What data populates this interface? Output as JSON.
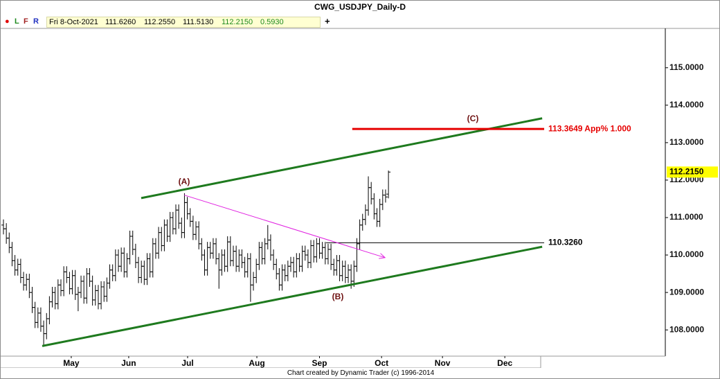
{
  "toolbar": {
    "buttons": [
      "L",
      "F",
      "R"
    ],
    "date": "Fri 8-Oct-2021",
    "open": "111.6260",
    "high": "112.2550",
    "low": "111.5130",
    "close": "112.2150",
    "change": "0.5930",
    "add": "+"
  },
  "chart_data": {
    "type": "ohlc",
    "title": "CWG_USDJPY_Daily-D",
    "color": "#000000",
    "open": [
      110.8,
      110.7,
      110.45,
      110.2,
      109.85,
      109.6,
      109.75,
      109.4,
      109.2,
      109.35,
      109.0,
      108.6,
      108.2,
      108.45,
      108.1,
      107.9,
      108.3,
      108.75,
      109.0,
      108.7,
      109.2,
      109.05,
      109.55,
      109.4,
      109.1,
      109.45,
      108.95,
      109.0,
      109.3,
      108.85,
      109.5,
      109.3,
      108.8,
      109.05,
      108.7,
      109.15,
      108.9,
      109.25,
      109.6,
      109.45,
      110.0,
      109.7,
      110.05,
      109.55,
      109.9,
      110.5,
      110.15,
      109.8,
      109.4,
      109.7,
      109.35,
      109.9,
      109.55,
      110.3,
      110.05,
      110.6,
      110.25,
      110.8,
      110.5,
      111.0,
      110.7,
      111.2,
      110.85,
      110.6,
      111.4,
      111.1,
      110.9,
      110.55,
      110.75,
      110.3,
      110.0,
      109.6,
      110.2,
      110.05,
      110.3,
      109.9,
      109.6,
      110.0,
      109.7,
      110.35,
      109.85,
      110.1,
      109.7,
      110.0,
      109.8,
      109.55,
      109.9,
      109.2,
      109.4,
      109.75,
      110.2,
      109.9,
      110.3,
      110.4,
      110.0,
      109.75,
      109.5,
      109.2,
      109.6,
      109.45,
      109.7,
      109.8,
      109.55,
      109.9,
      109.7,
      110.1,
      110.0,
      109.8,
      110.25,
      109.95,
      110.3,
      110.05,
      110.2,
      109.9,
      110.15,
      109.75,
      109.6,
      109.85,
      109.45,
      109.7,
      109.4,
      109.6,
      109.3,
      109.7,
      110.3,
      110.8,
      110.95,
      111.2,
      111.8,
      111.5,
      111.1,
      110.9,
      111.35,
      111.6,
      111.626
    ],
    "high": [
      110.95,
      110.85,
      110.6,
      110.35,
      110.0,
      109.9,
      109.9,
      109.55,
      109.5,
      109.5,
      109.15,
      108.75,
      108.6,
      108.6,
      108.25,
      108.45,
      108.9,
      109.15,
      109.15,
      109.35,
      109.35,
      109.7,
      109.7,
      109.55,
      109.6,
      109.6,
      109.15,
      109.45,
      109.45,
      109.65,
      109.65,
      109.45,
      109.2,
      109.2,
      109.3,
      109.3,
      109.4,
      109.75,
      109.75,
      110.15,
      110.15,
      110.2,
      110.2,
      110.05,
      110.65,
      110.65,
      110.3,
      109.95,
      109.85,
      109.85,
      110.05,
      110.05,
      110.45,
      110.45,
      110.75,
      110.75,
      110.95,
      110.95,
      111.15,
      111.15,
      111.35,
      111.35,
      111.0,
      111.65,
      111.55,
      111.25,
      111.05,
      110.9,
      110.9,
      110.45,
      110.15,
      110.35,
      110.35,
      110.45,
      110.45,
      110.05,
      110.15,
      110.15,
      110.5,
      110.5,
      110.25,
      110.25,
      110.15,
      110.15,
      109.95,
      110.05,
      110.05,
      109.55,
      109.9,
      110.35,
      110.35,
      110.45,
      110.8,
      110.55,
      110.15,
      109.9,
      109.65,
      109.75,
      109.75,
      109.85,
      109.95,
      109.95,
      110.05,
      110.05,
      110.25,
      110.25,
      110.15,
      110.4,
      110.4,
      110.45,
      110.45,
      110.35,
      110.35,
      110.3,
      110.3,
      109.9,
      110.0,
      110.0,
      109.85,
      109.85,
      109.75,
      109.75,
      109.85,
      110.45,
      110.95,
      111.1,
      111.35,
      112.1,
      111.95,
      111.65,
      111.25,
      111.5,
      111.75,
      111.75,
      112.255
    ],
    "low": [
      110.55,
      110.3,
      110.05,
      109.7,
      109.45,
      109.45,
      109.25,
      109.05,
      109.05,
      108.85,
      108.45,
      108.05,
      108.05,
      107.95,
      107.55,
      107.75,
      108.15,
      108.6,
      108.55,
      108.55,
      108.9,
      108.9,
      109.25,
      108.95,
      108.95,
      108.8,
      108.5,
      108.85,
      108.7,
      108.7,
      109.15,
      108.65,
      108.65,
      108.55,
      108.55,
      108.75,
      108.75,
      109.1,
      109.3,
      109.3,
      109.55,
      109.55,
      109.4,
      109.4,
      109.75,
      110.0,
      109.65,
      109.25,
      109.25,
      109.2,
      109.2,
      109.4,
      109.4,
      109.9,
      109.9,
      110.1,
      110.1,
      110.35,
      110.35,
      110.55,
      110.55,
      110.7,
      110.45,
      110.45,
      110.95,
      110.75,
      110.4,
      110.4,
      110.15,
      109.85,
      109.45,
      109.45,
      109.9,
      109.9,
      109.75,
      109.1,
      109.45,
      109.55,
      109.55,
      109.7,
      109.7,
      109.55,
      109.55,
      109.65,
      109.4,
      109.4,
      108.75,
      109.05,
      109.25,
      109.6,
      109.75,
      109.75,
      110.15,
      109.85,
      109.6,
      109.35,
      109.05,
      109.05,
      109.3,
      109.3,
      109.55,
      109.4,
      109.4,
      109.55,
      109.55,
      109.85,
      109.65,
      109.65,
      109.8,
      109.8,
      109.9,
      109.9,
      109.75,
      109.75,
      109.6,
      109.45,
      109.45,
      109.3,
      109.3,
      109.25,
      109.25,
      109.1,
      109.15,
      109.55,
      110.15,
      110.65,
      110.8,
      111.05,
      111.35,
      110.95,
      110.75,
      110.75,
      111.2,
      111.4,
      111.513
    ],
    "close": [
      110.7,
      110.45,
      110.2,
      109.85,
      109.6,
      109.75,
      109.4,
      109.2,
      109.35,
      109.0,
      108.6,
      108.2,
      108.45,
      108.1,
      107.9,
      108.3,
      108.75,
      109.0,
      108.7,
      109.2,
      109.05,
      109.55,
      109.4,
      109.1,
      109.45,
      108.95,
      109.0,
      109.3,
      108.85,
      109.5,
      109.3,
      108.8,
      109.05,
      108.7,
      109.15,
      108.9,
      109.25,
      109.6,
      109.45,
      110.0,
      109.7,
      110.05,
      109.55,
      109.9,
      110.5,
      110.15,
      109.8,
      109.4,
      109.7,
      109.35,
      109.9,
      109.55,
      110.3,
      110.05,
      110.6,
      110.25,
      110.8,
      110.5,
      111.0,
      110.7,
      111.2,
      110.85,
      110.6,
      111.4,
      111.1,
      110.9,
      110.55,
      110.75,
      110.3,
      110.0,
      109.6,
      110.2,
      110.05,
      110.3,
      109.9,
      109.6,
      110.0,
      109.7,
      110.35,
      109.85,
      110.1,
      109.7,
      110.0,
      109.8,
      109.55,
      109.9,
      109.2,
      109.4,
      109.75,
      110.2,
      109.9,
      110.3,
      110.4,
      110.0,
      109.75,
      109.5,
      109.2,
      109.6,
      109.45,
      109.7,
      109.8,
      109.55,
      109.9,
      109.7,
      110.1,
      110.0,
      109.8,
      110.25,
      109.95,
      110.3,
      110.05,
      110.2,
      109.9,
      110.15,
      109.75,
      109.6,
      109.85,
      109.45,
      109.7,
      109.4,
      109.6,
      109.3,
      109.7,
      110.3,
      110.8,
      110.95,
      111.2,
      111.8,
      111.5,
      111.1,
      110.9,
      111.35,
      111.6,
      111.55,
      112.215
    ],
    "xlim": [
      -0.96,
      230.36
    ],
    "ylim": [
      107.3,
      116.05
    ],
    "xticks": [
      {
        "value": 23.6,
        "label": "May"
      },
      {
        "value": 43.6,
        "label": "Jun"
      },
      {
        "value": 64.1,
        "label": "Jul"
      },
      {
        "value": 88.2,
        "label": "Aug"
      },
      {
        "value": 110,
        "label": "Sep"
      },
      {
        "value": 131.6,
        "label": "Oct"
      },
      {
        "value": 152.8,
        "label": "Nov"
      },
      {
        "value": 174.5,
        "label": "Dec"
      }
    ],
    "yticks": [
      {
        "value": 108,
        "label": "108.0000"
      },
      {
        "value": 109,
        "label": "109.0000"
      },
      {
        "value": 110,
        "label": "110.0000"
      },
      {
        "value": 111,
        "label": "111.0000"
      },
      {
        "value": 112,
        "label": "112.0000"
      },
      {
        "value": 113,
        "label": "113.0000"
      },
      {
        "value": 114,
        "label": "114.0000"
      },
      {
        "value": 115,
        "label": "115.0000"
      }
    ],
    "lines": [
      {
        "color": "#1e7a1e",
        "x": [
          47.95,
          187.5
        ],
        "y": [
          111.52,
          113.65
        ]
      },
      {
        "color": "#1e7a1e",
        "x": [
          13.5,
          187.5
        ],
        "y": [
          107.57,
          110.22
        ]
      },
      {
        "color": "#e60000",
        "x": [
          121.4,
          188.2
        ],
        "y": [
          113.3649,
          113.3649
        ],
        "label": "113.3649 App% 1.000"
      },
      {
        "color": "#000000",
        "x": [
          112.3,
          188.2
        ],
        "y": [
          110.326,
          110.326
        ],
        "label": "110.3260"
      },
      {
        "color": "#e020e0",
        "x": [
          62.9,
          132.8
        ],
        "y": [
          111.6,
          109.93
        ],
        "arrow": true
      }
    ],
    "annotations": [
      "(A)",
      "(B)",
      "(C)"
    ],
    "last_price_label": "112.2150"
  },
  "footer": "Chart created by Dynamic Trader  (c) 1996-2014"
}
